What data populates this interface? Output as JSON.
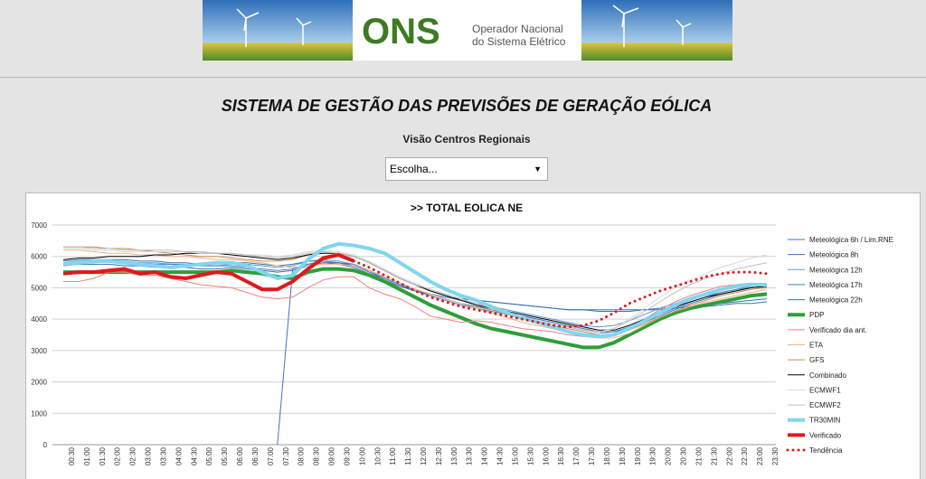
{
  "header": {
    "logo_mark": "ONS",
    "logo_line1": "Operador Nacional",
    "logo_line2": "do Sistema Elétrico"
  },
  "title": "SISTEMA DE GESTÃO DAS PREVISÕES DE GERAÇÃO EÓLICA",
  "subtitle": "Visão Centros Regionais",
  "select": {
    "placeholder": "Escolha..."
  },
  "chart_data": {
    "type": "line",
    "title": ">> TOTAL EOLICA NE",
    "categories": [
      "00:30",
      "01:00",
      "01:30",
      "02:00",
      "02:30",
      "03:00",
      "03:30",
      "04:00",
      "04:30",
      "05:00",
      "05:30",
      "06:00",
      "06:30",
      "07:00",
      "07:30",
      "08:00",
      "08:30",
      "09:00",
      "09:30",
      "10:00",
      "10:30",
      "11:00",
      "11:30",
      "12:00",
      "12:30",
      "13:00",
      "13:30",
      "14:00",
      "14:30",
      "15:00",
      "15:30",
      "16:00",
      "16:30",
      "17:00",
      "17:30",
      "18:00",
      "18:30",
      "19:00",
      "19:30",
      "20:00",
      "20:30",
      "21:00",
      "21:30",
      "22:00",
      "22:30",
      "23:00",
      "23:30"
    ],
    "ylim": [
      0,
      7000
    ],
    "yticks": [
      0,
      1000,
      2000,
      3000,
      4000,
      5000,
      6000,
      7000
    ],
    "grid": true,
    "legend": "right",
    "series": [
      {
        "name": "Meteológica 6h / Lim.RNE",
        "color": "#4472c4",
        "line_width": 1,
        "values": [
          null,
          null,
          null,
          null,
          null,
          null,
          null,
          null,
          null,
          null,
          null,
          null,
          null,
          null,
          0,
          5600,
          5750,
          5800,
          5750,
          5650,
          5450,
          5250,
          5050,
          4900,
          4800,
          4700,
          4650,
          4600,
          4550,
          4500,
          4450,
          4400,
          4350,
          4300,
          4300,
          4300,
          4300,
          4300,
          4300,
          4350,
          4350,
          4400,
          4400,
          4450,
          4500,
          4500,
          4550
        ]
      },
      {
        "name": "Meteológica 8h",
        "color": "#2e75b6",
        "line_width": 1,
        "values": [
          5850,
          5900,
          5900,
          5900,
          5900,
          5850,
          5850,
          5800,
          5800,
          5750,
          5800,
          5800,
          5800,
          5750,
          5700,
          5750,
          5850,
          5850,
          5800,
          5750,
          5500,
          5250,
          5050,
          4900,
          4800,
          4700,
          4650,
          4600,
          4550,
          4500,
          4450,
          4400,
          4350,
          4300,
          4300,
          4250,
          4250,
          4250,
          4300,
          4300,
          4350,
          4400,
          4450,
          4500,
          4550,
          4600,
          4650
        ]
      },
      {
        "name": "Meteológica 12h",
        "color": "#5b9bd5",
        "line_width": 1,
        "values": [
          5750,
          5800,
          5800,
          5850,
          5850,
          5800,
          5800,
          5750,
          5750,
          5700,
          5700,
          5750,
          5750,
          5700,
          5650,
          5700,
          5850,
          5900,
          5850,
          5750,
          5550,
          5300,
          5100,
          4950,
          4800,
          4700,
          4600,
          4500,
          4400,
          4300,
          4200,
          4100,
          4000,
          3900,
          3800,
          3750,
          3800,
          3950,
          4150,
          4350,
          4500,
          4650,
          4750,
          4850,
          4950,
          5000,
          5050
        ]
      },
      {
        "name": "Meteológica 17h",
        "color": "#4a7ebb",
        "line_width": 1,
        "values": [
          5800,
          5850,
          5850,
          5850,
          5800,
          5800,
          5750,
          5750,
          5700,
          5700,
          5700,
          5700,
          5650,
          5600,
          5550,
          5600,
          5750,
          5850,
          5800,
          5700,
          5500,
          5300,
          5100,
          4900,
          4750,
          4600,
          4450,
          4350,
          4250,
          4150,
          4050,
          3950,
          3850,
          3750,
          3650,
          3550,
          3600,
          3750,
          3950,
          4150,
          4350,
          4550,
          4700,
          4850,
          4950,
          5050,
          5100
        ]
      },
      {
        "name": "Meteológica 22h",
        "color": "#3c6eb4",
        "line_width": 1,
        "values": [
          5700,
          5750,
          5750,
          5750,
          5700,
          5700,
          5650,
          5650,
          5650,
          5600,
          5600,
          5650,
          5600,
          5550,
          5500,
          5550,
          5700,
          5800,
          5800,
          5700,
          5550,
          5350,
          5150,
          4950,
          4800,
          4650,
          4500,
          4400,
          4300,
          4200,
          4100,
          4000,
          3900,
          3800,
          3700,
          3600,
          3600,
          3700,
          3900,
          4100,
          4300,
          4500,
          4650,
          4800,
          4900,
          5000,
          5050
        ]
      },
      {
        "name": "PDP",
        "color": "#2e9e3a",
        "line_width": 4,
        "values": [
          5500,
          5500,
          5500,
          5500,
          5500,
          5500,
          5500,
          5500,
          5500,
          5500,
          5500,
          5550,
          5500,
          5450,
          5350,
          5300,
          5500,
          5600,
          5600,
          5550,
          5400,
          5200,
          4950,
          4700,
          4450,
          4250,
          4050,
          3850,
          3700,
          3600,
          3500,
          3400,
          3300,
          3200,
          3100,
          3100,
          3250,
          3500,
          3750,
          4000,
          4200,
          4350,
          4450,
          4550,
          4650,
          4750,
          4800
        ]
      },
      {
        "name": "Verificado dia ant.",
        "color": "#f08080",
        "line_width": 1,
        "values": [
          5200,
          5200,
          5300,
          5500,
          5500,
          5400,
          5400,
          5300,
          5200,
          5100,
          5050,
          5000,
          4850,
          4700,
          4650,
          4700,
          5000,
          5250,
          5350,
          5350,
          5000,
          4800,
          4650,
          4400,
          4100,
          4000,
          3900,
          3950,
          3900,
          3800,
          3700,
          3650,
          3600,
          3500,
          3450,
          3400,
          3500,
          3750,
          4000,
          4300,
          4550,
          4750,
          4900,
          5050,
          5100,
          5150,
          5100
        ]
      },
      {
        "name": "ETA",
        "color": "#f4b183",
        "line_width": 1,
        "values": [
          6200,
          6200,
          6150,
          6100,
          6100,
          6050,
          6050,
          6000,
          6000,
          5950,
          5900,
          5900,
          5850,
          5800,
          5700,
          5650,
          5700,
          5750,
          5750,
          5700,
          5550,
          5350,
          5150,
          4950,
          4800,
          4650,
          4500,
          4350,
          4200,
          4050,
          3900,
          3800,
          3700,
          3600,
          3500,
          3400,
          3400,
          3550,
          3800,
          4050,
          4250,
          4400,
          4550,
          4650,
          4750,
          4850,
          4950
        ]
      },
      {
        "name": "GFS",
        "color": "#c09050",
        "line_width": 1,
        "values": [
          6300,
          6300,
          6300,
          6250,
          6250,
          6200,
          6150,
          6100,
          6050,
          6000,
          6000,
          5950,
          5900,
          5850,
          5850,
          5900,
          6050,
          6150,
          6100,
          6000,
          5800,
          5550,
          5300,
          5100,
          4900,
          4750,
          4600,
          4450,
          4300,
          4150,
          4000,
          3900,
          3800,
          3700,
          3600,
          3500,
          3500,
          3650,
          3850,
          4050,
          4250,
          4450,
          4600,
          4750,
          4850,
          4950,
          5000
        ]
      },
      {
        "name": "Combinado",
        "color": "#000000",
        "line_width": 1,
        "values": [
          5900,
          5950,
          5950,
          6000,
          6000,
          6000,
          6050,
          6050,
          6100,
          6100,
          6100,
          6050,
          6000,
          5950,
          5900,
          5950,
          6050,
          6100,
          6100,
          6000,
          5800,
          5550,
          5300,
          5100,
          4900,
          4750,
          4600,
          4450,
          4350,
          4250,
          4150,
          4050,
          3950,
          3850,
          3750,
          3650,
          3650,
          3800,
          4000,
          4200,
          4400,
          4550,
          4700,
          4800,
          4900,
          5000,
          5050
        ]
      },
      {
        "name": "ECMWF1",
        "color": "#d9d9d9",
        "line_width": 1,
        "values": [
          6250,
          6250,
          6200,
          6200,
          6150,
          6150,
          6150,
          6150,
          6150,
          6100,
          6100,
          6100,
          6050,
          6050,
          6000,
          6050,
          6150,
          6200,
          6150,
          6050,
          5850,
          5600,
          5350,
          5150,
          4950,
          4800,
          4650,
          4500,
          4350,
          4200,
          4050,
          3950,
          3850,
          3750,
          3650,
          3550,
          3700,
          4000,
          4350,
          4700,
          5000,
          5250,
          5450,
          5650,
          5800,
          5950,
          6050
        ]
      },
      {
        "name": "ECMWF2",
        "color": "#bfbfbf",
        "line_width": 1,
        "values": [
          6300,
          6300,
          6250,
          6250,
          6200,
          6200,
          6200,
          6200,
          6150,
          6150,
          6100,
          6100,
          6050,
          6000,
          5950,
          6000,
          6100,
          6150,
          6100,
          6000,
          5800,
          5550,
          5300,
          5100,
          4950,
          4800,
          4650,
          4500,
          4350,
          4200,
          4050,
          3950,
          3850,
          3750,
          3650,
          3600,
          3700,
          3950,
          4250,
          4550,
          4850,
          5100,
          5300,
          5450,
          5600,
          5700,
          5800
        ]
      },
      {
        "name": "TR30MIN",
        "color": "#7fd6f0",
        "line_width": 4,
        "values": [
          5750,
          5800,
          5850,
          5850,
          5800,
          5750,
          5700,
          5650,
          5700,
          5750,
          5800,
          5800,
          5700,
          5500,
          5300,
          5400,
          5900,
          6250,
          6400,
          6350,
          6250,
          6100,
          5800,
          5500,
          5200,
          4950,
          4750,
          4600,
          4400,
          4200,
          4050,
          3900,
          3750,
          3600,
          3500,
          3450,
          3500,
          3700,
          3950,
          4200,
          4450,
          4650,
          4800,
          4950,
          5050,
          5100,
          5100
        ]
      },
      {
        "name": "Verificado",
        "color": "#e0181c",
        "line_width": 4,
        "values": [
          5450,
          5500,
          5500,
          5550,
          5600,
          5450,
          5500,
          5350,
          5300,
          5400,
          5500,
          5450,
          5200,
          4950,
          4950,
          5200,
          5600,
          5950,
          6050,
          5850,
          null,
          null,
          null,
          null,
          null,
          null,
          null,
          null,
          null,
          null,
          null,
          null,
          null,
          null,
          null,
          null,
          null,
          null,
          null,
          null,
          null,
          null,
          null,
          null,
          null,
          null,
          null
        ]
      },
      {
        "name": "Tendência",
        "color": "#e0181c",
        "line_width": 3,
        "line_style": "dotted",
        "values": [
          null,
          null,
          null,
          null,
          null,
          null,
          null,
          null,
          null,
          null,
          null,
          null,
          null,
          null,
          null,
          null,
          null,
          null,
          null,
          5850,
          5650,
          5400,
          5150,
          4900,
          4700,
          4550,
          4400,
          4300,
          4200,
          4100,
          4000,
          3900,
          3800,
          3750,
          3800,
          3950,
          4200,
          4500,
          4700,
          4900,
          5050,
          5200,
          5350,
          5450,
          5500,
          5500,
          5450
        ]
      }
    ]
  }
}
